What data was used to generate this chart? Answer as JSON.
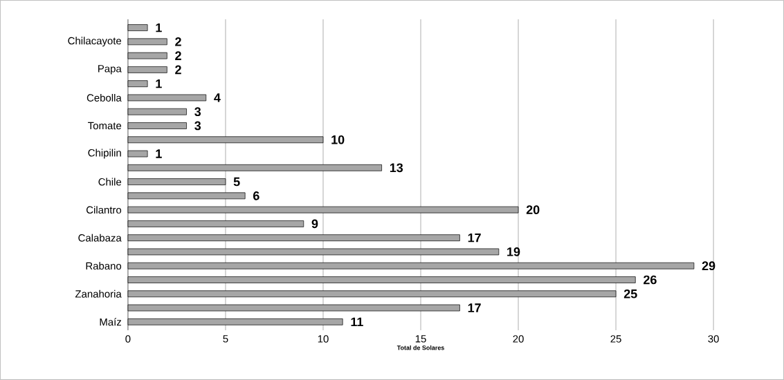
{
  "chart_data": {
    "type": "bar",
    "orientation": "horizontal",
    "xlabel": "Total de Solares",
    "categories": [
      null,
      "Chilacayote",
      null,
      "Papa",
      null,
      "Cebolla",
      null,
      "Tomate",
      null,
      "Chipilin",
      null,
      "Chile",
      null,
      "Cilantro",
      null,
      "Calabaza",
      null,
      "Rabano",
      null,
      "Zanahoria",
      null,
      "Maíz"
    ],
    "values": [
      1,
      2,
      2,
      2,
      1,
      4,
      3,
      3,
      10,
      1,
      13,
      5,
      6,
      20,
      9,
      17,
      19,
      29,
      26,
      25,
      17,
      11
    ],
    "color": "#a6a6a6",
    "xlim": [
      0,
      30
    ],
    "xticks": [
      0,
      5,
      10,
      15,
      20,
      25,
      30
    ],
    "grid": "x",
    "data_labels": true
  }
}
